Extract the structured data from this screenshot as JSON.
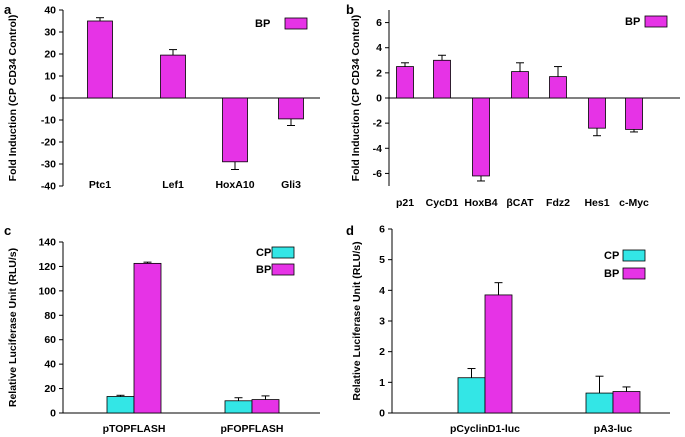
{
  "colors": {
    "CP": "#33e6e6",
    "BP": "#e633e6",
    "axis": "#000000"
  },
  "chart_data": [
    {
      "panel": "a",
      "type": "bar",
      "ylabel": "Fold Induction (CP CD34 Control)",
      "ylim": [
        -40,
        40
      ],
      "yticks": [
        40,
        30,
        20,
        10,
        0,
        -10,
        -20,
        -30,
        -40
      ],
      "categories": [
        "Ptc1",
        "Lef1",
        "HoxA10",
        "Gli3"
      ],
      "series": [
        {
          "name": "BP",
          "values": [
            35,
            19.5,
            -29,
            -9.5
          ],
          "errors": [
            1.5,
            2.5,
            3.5,
            3.0
          ]
        }
      ],
      "legend": [
        "BP"
      ]
    },
    {
      "panel": "b",
      "type": "bar",
      "ylabel": "Fold Induction (CP CD34 Control)",
      "ylim": [
        -7,
        7
      ],
      "yticks": [
        6,
        4,
        2,
        0,
        -2,
        -4,
        -6
      ],
      "categories": [
        "p21",
        "CycD1",
        "HoxB4",
        "βCAT",
        "Fdz2",
        "Hes1",
        "c-Myc"
      ],
      "series": [
        {
          "name": "BP",
          "values": [
            2.5,
            3.0,
            -6.2,
            2.1,
            1.7,
            -2.4,
            -2.5
          ],
          "errors": [
            0.3,
            0.4,
            0.4,
            0.7,
            0.8,
            0.6,
            0.2
          ]
        }
      ],
      "legend": [
        "BP"
      ]
    },
    {
      "panel": "c",
      "type": "bar",
      "ylabel": "Relative Luciferase Unit (RLU/s)",
      "ylim": [
        0,
        140
      ],
      "yticks": [
        140,
        120,
        100,
        80,
        60,
        40,
        20,
        0
      ],
      "categories": [
        "pTOPFLASH",
        "pFOPFLASH"
      ],
      "series": [
        {
          "name": "CP",
          "values": [
            13.5,
            10
          ],
          "errors": [
            1,
            2.5
          ]
        },
        {
          "name": "BP",
          "values": [
            122.5,
            11
          ],
          "errors": [
            1,
            3
          ]
        }
      ],
      "legend": [
        "CP",
        "BP"
      ]
    },
    {
      "panel": "d",
      "type": "bar",
      "ylabel": "Relative Luciferase Unit (RLU/s)",
      "ylim": [
        0,
        6
      ],
      "yticks": [
        6,
        5,
        4,
        3,
        2,
        1,
        0
      ],
      "categories": [
        "pCyclinD1-luc",
        "pA3-luc"
      ],
      "series": [
        {
          "name": "CP",
          "values": [
            1.15,
            0.65
          ],
          "errors": [
            0.3,
            0.55
          ]
        },
        {
          "name": "BP",
          "values": [
            3.85,
            0.7
          ],
          "errors": [
            0.4,
            0.15
          ]
        }
      ],
      "legend": [
        "CP",
        "BP"
      ]
    }
  ]
}
